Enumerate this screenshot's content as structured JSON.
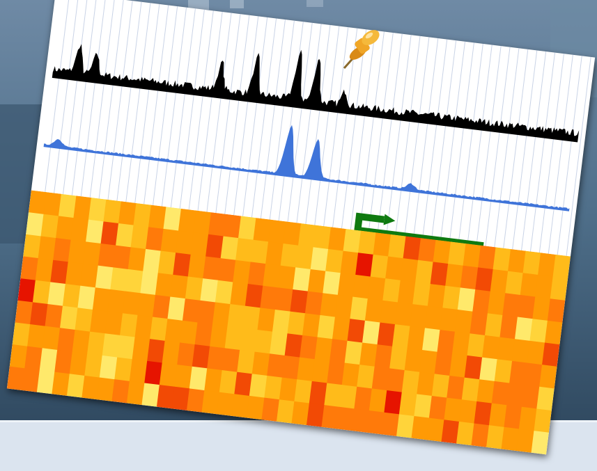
{
  "colors": {
    "backdrop_sky": "#4f6f8a",
    "backdrop_dark": "#1f3347",
    "bottom_band": "#dbe4ef",
    "card": "#ffffff",
    "top_track": "#000000",
    "blue_track": "#3f74d9",
    "gridline": "#c9d3e6",
    "arrow": "#0f7a10",
    "heat_low": "#ffe96b",
    "heat_mid": "#ff9a05",
    "heat_high": "#e61400",
    "pin": "#f0a627"
  },
  "icons": {
    "pushpin": "pushpin-icon",
    "arrow": "bent-arrow-icon"
  },
  "heatmap": {
    "rows": 9,
    "cols": 36
  }
}
